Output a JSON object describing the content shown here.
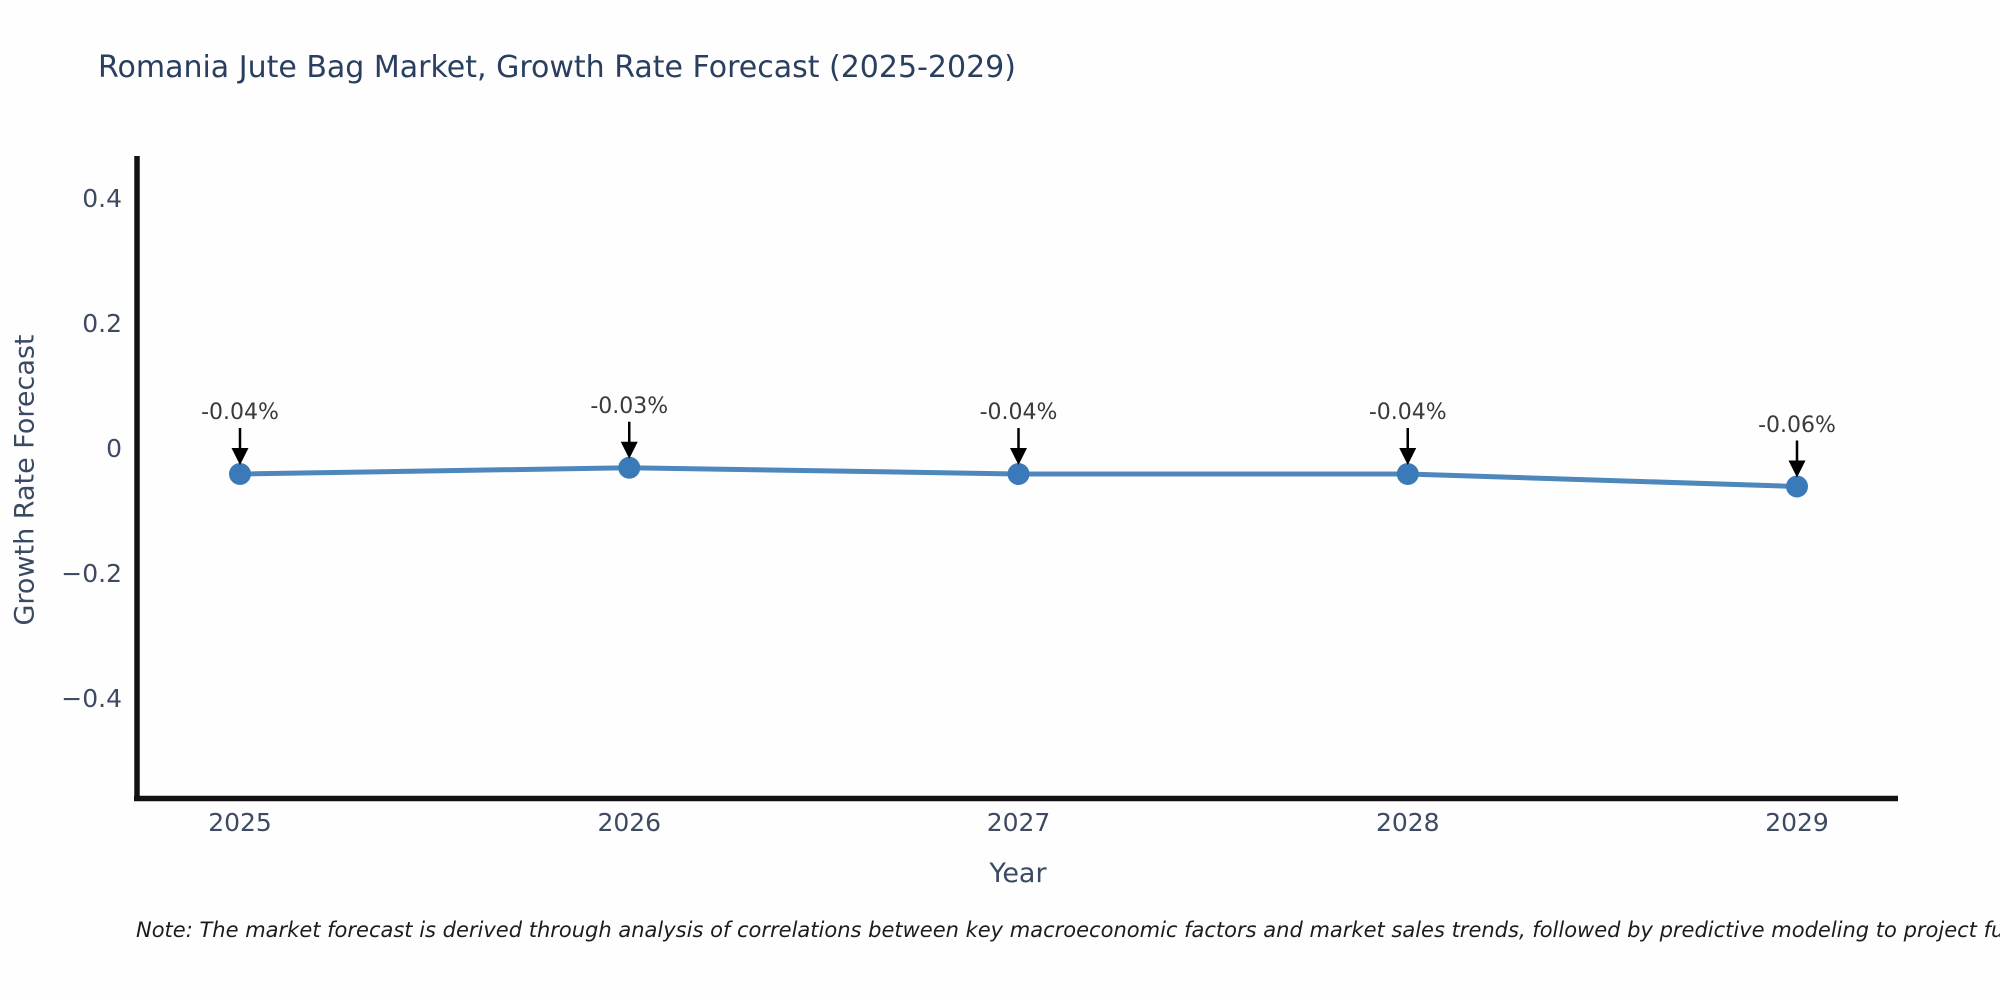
{
  "title": "Romania Jute Bag Market, Growth Rate Forecast (2025-2029)",
  "note": "Note: The market forecast is derived through analysis of correlations between key macroeconomic factors and market sales trends, followed by predictive modeling to project future sa",
  "colors": {
    "title": "#2a3f5f",
    "tick_label": "#3e4a61",
    "axis_label": "#3b4a63",
    "spine": "#121212",
    "line": "#4d87bb",
    "marker": "#3b7ab8",
    "annotation_text": "#3a3a3a",
    "arrow": "#000000",
    "note_text": "#1c1c1c",
    "background": "#fefefe"
  },
  "chart_data": {
    "type": "line",
    "title": "Romania Jute Bag Market, Growth Rate Forecast (2025-2029)",
    "xlabel": "Year",
    "ylabel": "Growth Rate Forecast",
    "x": [
      2025,
      2026,
      2027,
      2028,
      2029
    ],
    "series": [
      {
        "name": "Growth Rate Forecast",
        "values": [
          -0.04,
          -0.03,
          -0.04,
          -0.04,
          -0.06
        ],
        "point_labels": [
          "-0.04%",
          "-0.03%",
          "-0.04%",
          "-0.04%",
          "-0.06%"
        ]
      }
    ],
    "xtick_labels": [
      "2025",
      "2026",
      "2027",
      "2028",
      "2029"
    ],
    "yticks": [
      0.4,
      0.2,
      0,
      -0.2,
      -0.4
    ],
    "ytick_labels": [
      "0.4",
      "0.2",
      "0",
      "−0.2",
      "−0.4"
    ],
    "xlim": [
      2024.74,
      2029.26
    ],
    "ylim": [
      -0.558,
      0.466
    ],
    "grid": false,
    "legend_position": "none",
    "marker_style": "circle",
    "annotations_have_arrows": true
  }
}
